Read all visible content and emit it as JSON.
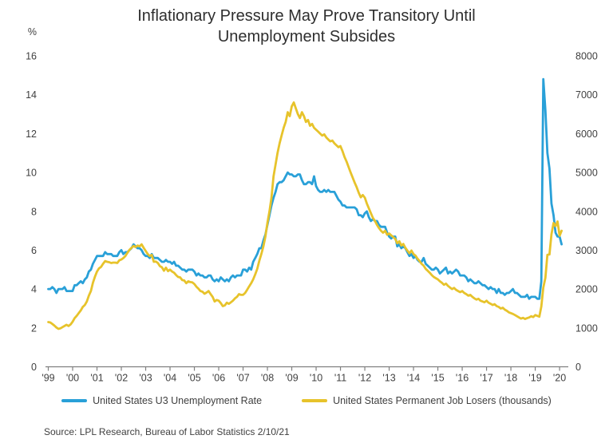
{
  "title": {
    "line1": "Inflationary Pressure May Prove Transitory Until",
    "line2": "Unemployment Subsides"
  },
  "left_axis_unit": "%",
  "legend": {
    "items": [
      {
        "label": "United States U3 Unemployment Rate",
        "color": "#29A0D8"
      },
      {
        "label": "United States Permanent Job Losers (thousands)",
        "color": "#E7C32B"
      }
    ]
  },
  "source": "Source: LPL Research, Bureau of Labor Statistics 2/10/21",
  "chart_data": {
    "type": "line",
    "title": "Inflationary Pressure May Prove Transitory Until Unemployment Subsides",
    "frequency": "monthly",
    "start": "1999-12",
    "end": "2021-01",
    "grid": false,
    "legend_position": "bottom",
    "left_axis": {
      "unit": "%",
      "min": 0,
      "max": 16,
      "ticks": [
        16,
        14,
        12,
        10,
        8,
        6,
        4,
        2,
        0
      ]
    },
    "right_axis": {
      "min": 0,
      "max": 8000,
      "ticks": [
        8000,
        7000,
        6000,
        5000,
        4000,
        3000,
        2000,
        1000,
        0
      ]
    },
    "x_tick_labels": [
      "'99",
      "'00",
      "'01",
      "'02",
      "'03",
      "'04",
      "'05",
      "'06",
      "'07",
      "'08",
      "'09",
      "'10",
      "'11",
      "'12",
      "'13",
      "'14",
      "'15",
      "'16",
      "'17",
      "'18",
      "'19",
      "'20"
    ],
    "series": [
      {
        "name": "United States U3 Unemployment Rate",
        "axis": "left",
        "color": "#29A0D8",
        "values": [
          4.0,
          4.0,
          4.1,
          4.0,
          3.8,
          4.0,
          4.0,
          4.0,
          4.1,
          3.9,
          3.9,
          3.9,
          3.9,
          4.2,
          4.2,
          4.3,
          4.4,
          4.3,
          4.5,
          4.6,
          4.9,
          5.0,
          5.3,
          5.5,
          5.7,
          5.7,
          5.7,
          5.7,
          5.9,
          5.8,
          5.8,
          5.8,
          5.7,
          5.7,
          5.7,
          5.9,
          6.0,
          5.8,
          5.9,
          5.9,
          6.0,
          6.1,
          6.3,
          6.2,
          6.1,
          6.1,
          6.0,
          5.8,
          5.7,
          5.7,
          5.6,
          5.8,
          5.6,
          5.6,
          5.6,
          5.5,
          5.4,
          5.4,
          5.5,
          5.4,
          5.4,
          5.3,
          5.4,
          5.2,
          5.2,
          5.1,
          5.0,
          5.0,
          4.9,
          5.0,
          5.0,
          5.0,
          4.9,
          4.7,
          4.8,
          4.7,
          4.7,
          4.6,
          4.6,
          4.7,
          4.7,
          4.5,
          4.4,
          4.5,
          4.4,
          4.6,
          4.5,
          4.4,
          4.5,
          4.4,
          4.6,
          4.7,
          4.6,
          4.7,
          4.7,
          4.7,
          5.0,
          5.0,
          4.9,
          5.1,
          5.0,
          5.4,
          5.6,
          5.8,
          6.1,
          6.1,
          6.5,
          6.8,
          7.3,
          7.8,
          8.3,
          8.7,
          9.0,
          9.4,
          9.5,
          9.5,
          9.6,
          9.8,
          10.0,
          9.9,
          9.9,
          9.8,
          9.8,
          9.9,
          9.9,
          9.6,
          9.4,
          9.4,
          9.5,
          9.5,
          9.4,
          9.8,
          9.3,
          9.1,
          9.0,
          9.0,
          9.1,
          9.0,
          9.1,
          9.0,
          9.0,
          9.0,
          8.8,
          8.6,
          8.5,
          8.3,
          8.3,
          8.2,
          8.2,
          8.2,
          8.2,
          8.2,
          8.1,
          7.8,
          7.8,
          7.7,
          7.9,
          8.0,
          7.7,
          7.5,
          7.6,
          7.5,
          7.5,
          7.3,
          7.2,
          7.2,
          7.2,
          6.9,
          6.7,
          6.6,
          6.7,
          6.7,
          6.2,
          6.3,
          6.1,
          6.2,
          6.1,
          5.9,
          5.7,
          5.8,
          5.6,
          5.7,
          5.5,
          5.4,
          5.4,
          5.6,
          5.3,
          5.2,
          5.1,
          5.0,
          5.0,
          5.1,
          5.0,
          4.8,
          4.9,
          5.0,
          5.1,
          4.8,
          4.9,
          4.8,
          4.9,
          5.0,
          4.9,
          4.7,
          4.7,
          4.7,
          4.6,
          4.4,
          4.5,
          4.4,
          4.3,
          4.3,
          4.4,
          4.3,
          4.2,
          4.2,
          4.1,
          4.0,
          4.1,
          4.0,
          4.0,
          3.8,
          4.0,
          3.8,
          3.8,
          3.7,
          3.8,
          3.8,
          3.9,
          4.0,
          3.8,
          3.8,
          3.7,
          3.6,
          3.6,
          3.6,
          3.7,
          3.5,
          3.6,
          3.6,
          3.6,
          3.5,
          3.5,
          4.4,
          14.8,
          13.2,
          11.0,
          10.2,
          8.4,
          7.8,
          6.9,
          6.7,
          6.7,
          6.3
        ]
      },
      {
        "name": "United States Permanent Job Losers (thousands)",
        "axis": "right",
        "color": "#E7C32B",
        "values": [
          1150,
          1140,
          1100,
          1060,
          1010,
          975,
          990,
          1020,
          1050,
          1080,
          1050,
          1090,
          1160,
          1250,
          1310,
          1380,
          1450,
          1540,
          1590,
          1680,
          1830,
          1950,
          2160,
          2320,
          2450,
          2530,
          2570,
          2650,
          2720,
          2700,
          2690,
          2670,
          2680,
          2680,
          2670,
          2740,
          2760,
          2800,
          2850,
          2930,
          3010,
          3060,
          3110,
          3080,
          3120,
          3100,
          3150,
          3060,
          2980,
          2900,
          2850,
          2880,
          2700,
          2710,
          2670,
          2590,
          2560,
          2470,
          2550,
          2460,
          2500,
          2450,
          2420,
          2360,
          2310,
          2300,
          2230,
          2220,
          2150,
          2200,
          2180,
          2170,
          2130,
          2060,
          2010,
          1950,
          1930,
          1880,
          1910,
          1950,
          1870,
          1800,
          1680,
          1720,
          1700,
          1640,
          1560,
          1580,
          1650,
          1620,
          1660,
          1700,
          1760,
          1800,
          1870,
          1850,
          1850,
          1900,
          1980,
          2070,
          2150,
          2250,
          2380,
          2520,
          2730,
          2900,
          3100,
          3350,
          3700,
          4000,
          4350,
          4900,
          5200,
          5500,
          5750,
          5950,
          6150,
          6300,
          6550,
          6450,
          6700,
          6800,
          6650,
          6500,
          6400,
          6550,
          6450,
          6300,
          6350,
          6200,
          6250,
          6150,
          6100,
          6050,
          6000,
          5950,
          5980,
          5900,
          5850,
          5800,
          5820,
          5750,
          5700,
          5650,
          5680,
          5550,
          5400,
          5280,
          5140,
          5000,
          4870,
          4740,
          4620,
          4480,
          4360,
          4420,
          4350,
          4200,
          4080,
          3950,
          3830,
          3750,
          3650,
          3570,
          3500,
          3450,
          3500,
          3400,
          3430,
          3380,
          3340,
          3290,
          3180,
          3230,
          3120,
          3160,
          3060,
          2990,
          2920,
          2990,
          2900,
          2860,
          2780,
          2720,
          2650,
          2600,
          2520,
          2470,
          2420,
          2360,
          2310,
          2280,
          2250,
          2200,
          2160,
          2110,
          2140,
          2080,
          2040,
          2000,
          2030,
          1980,
          1950,
          1920,
          1950,
          1900,
          1870,
          1830,
          1850,
          1800,
          1760,
          1730,
          1750,
          1700,
          1680,
          1660,
          1700,
          1650,
          1620,
          1590,
          1610,
          1560,
          1540,
          1500,
          1520,
          1470,
          1440,
          1400,
          1380,
          1360,
          1330,
          1300,
          1270,
          1240,
          1260,
          1230,
          1250,
          1270,
          1300,
          1280,
          1330,
          1310,
          1290,
          1550,
          2040,
          2290,
          2880,
          2890,
          3410,
          3700,
          3620,
          3740,
          3370,
          3500
        ]
      }
    ]
  }
}
